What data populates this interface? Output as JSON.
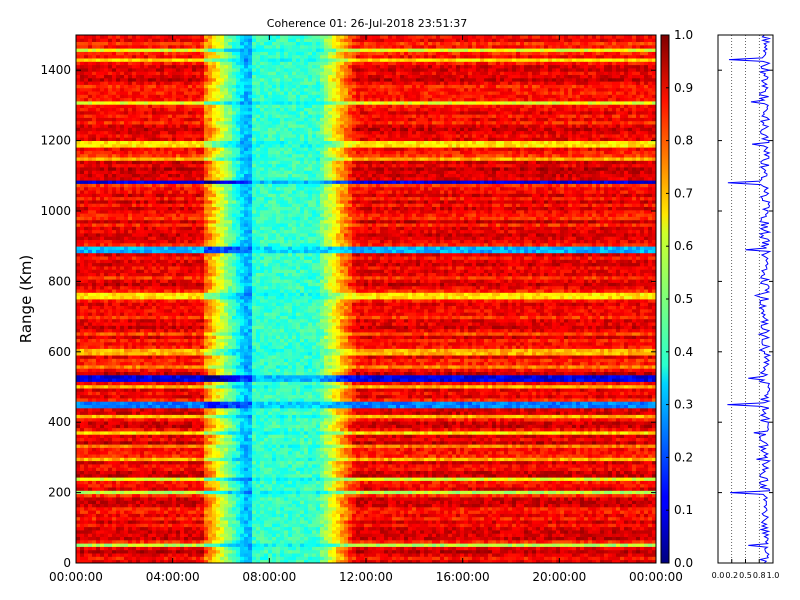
{
  "chart_data": [
    {
      "type": "heatmap",
      "title": "Coherence 01: 26-Jul-2018 23:51:37",
      "ylabel": "Range (Km)",
      "xlabel": "",
      "x_range": [
        "00:00:00",
        "24:00:00"
      ],
      "y_range": [
        0,
        1500
      ],
      "x_ticks": [
        "00:00:00",
        "04:00:00",
        "08:00:00",
        "12:00:00",
        "16:00:00",
        "20:00:00",
        "00:00:00"
      ],
      "y_ticks": [
        "0",
        "200",
        "400",
        "600",
        "800",
        "1000",
        "1200",
        "1400"
      ],
      "y_tick_values": [
        0,
        200,
        400,
        600,
        800,
        1000,
        1200,
        1400
      ],
      "colormap": "jet",
      "value_range": [
        0.0,
        1.0
      ],
      "colorbar_ticks": [
        "0.0",
        "0.1",
        "0.2",
        "0.3",
        "0.4",
        "0.5",
        "0.6",
        "0.7",
        "0.8",
        "0.9",
        "1.0"
      ],
      "background_level": 0.88,
      "low_coherence_period": {
        "start": "07:00:00",
        "end": "10:00:00",
        "min_level": 0.35
      },
      "low_coherence_ranges_km": [
        {
          "range": 50,
          "level": 0.55
        },
        {
          "range": 200,
          "level": 0.55
        },
        {
          "range": 240,
          "level": 0.6
        },
        {
          "range": 295,
          "level": 0.7
        },
        {
          "range": 330,
          "level": 0.75
        },
        {
          "range": 370,
          "level": 0.65
        },
        {
          "range": 420,
          "level": 0.7
        },
        {
          "range": 450,
          "level": 0.25
        },
        {
          "range": 500,
          "level": 0.7
        },
        {
          "range": 525,
          "level": 0.1
        },
        {
          "range": 560,
          "level": 0.75
        },
        {
          "range": 600,
          "level": 0.7
        },
        {
          "range": 650,
          "level": 0.8
        },
        {
          "range": 760,
          "level": 0.65
        },
        {
          "range": 890,
          "level": 0.3
        },
        {
          "range": 1080,
          "level": 0.1
        },
        {
          "range": 1150,
          "level": 0.7
        },
        {
          "range": 1190,
          "level": 0.65
        },
        {
          "range": 1310,
          "level": 0.6
        },
        {
          "range": 1430,
          "level": 0.65
        },
        {
          "range": 1460,
          "level": 0.6
        }
      ]
    },
    {
      "type": "line",
      "title": "",
      "xlabel": "",
      "ylabel": "",
      "x_ticks": [
        "0.0",
        "0.2",
        "0.5",
        "0.8",
        "1.0"
      ],
      "x_tick_values": [
        0.0,
        0.25,
        0.5,
        0.75,
        1.0
      ],
      "xlim": [
        0,
        1
      ],
      "ylim": [
        0,
        1500
      ],
      "grid_x": true,
      "series_color": "#0000ff",
      "mean_level": 0.85,
      "dips_km": [
        {
          "range": 50,
          "level": 0.55
        },
        {
          "range": 200,
          "level": 0.22
        },
        {
          "range": 295,
          "level": 0.7
        },
        {
          "range": 370,
          "level": 0.65
        },
        {
          "range": 450,
          "level": 0.17
        },
        {
          "range": 525,
          "level": 0.55
        },
        {
          "range": 650,
          "level": 0.75
        },
        {
          "range": 760,
          "level": 0.68
        },
        {
          "range": 890,
          "level": 0.5
        },
        {
          "range": 1080,
          "level": 0.18
        },
        {
          "range": 1190,
          "level": 0.62
        },
        {
          "range": 1310,
          "level": 0.6
        },
        {
          "range": 1430,
          "level": 0.2
        }
      ]
    }
  ]
}
